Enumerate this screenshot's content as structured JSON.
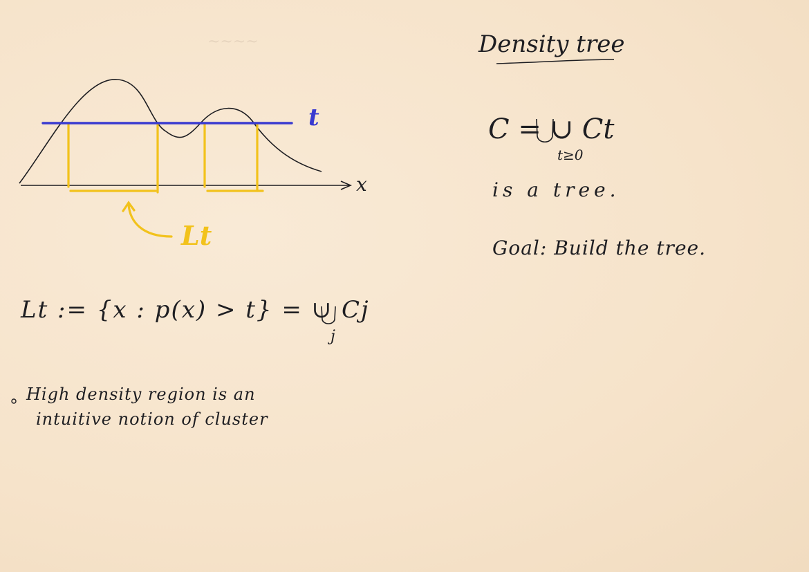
{
  "title": "Density tree",
  "sketch": {
    "threshold_label": "t",
    "axis_label": "x",
    "level_set_label": "Lt"
  },
  "definition": "Lt := {x : p(x) > t} = ∪ Cj",
  "definition_index": "j",
  "note": {
    "line1": "High density region is an",
    "line2": "intuitive notion of cluster"
  },
  "tree_formula": "C = ∪ Ct",
  "tree_formula_index": "t≥0",
  "tree_statement": "is a tree.",
  "goal": "Goal: Build the tree.",
  "colors": {
    "threshold": "#3a3ad0",
    "level_set": "#f2c21c",
    "ink": "#1e1e22",
    "paper": "#f7e6cf"
  }
}
